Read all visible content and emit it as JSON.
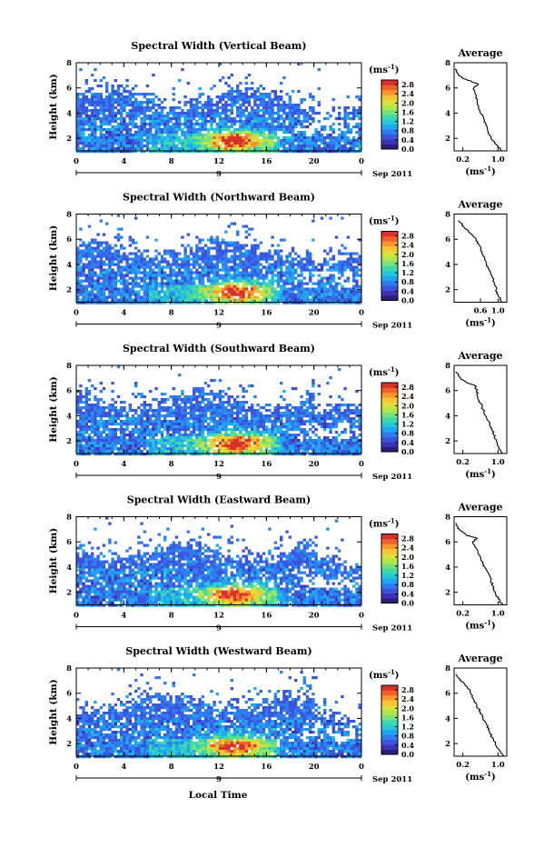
{
  "figure": {
    "xlabel": "Local Time",
    "unit_label": "(ms",
    "unit_exp": "-1",
    "date_label": "Sep 2011",
    "date_tick": "9",
    "average_title": "Average"
  },
  "colorbar": {
    "ticks": [
      "0.0",
      "0.4",
      "0.8",
      "1.2",
      "1.6",
      "2.0",
      "2.4",
      "2.8"
    ],
    "colors": [
      "#2b1e7a",
      "#3a33b5",
      "#3a55dd",
      "#2f7cf0",
      "#1ea6f0",
      "#22c8d8",
      "#3fd9a8",
      "#78e27a",
      "#b0e649",
      "#dde03a",
      "#f7c532",
      "#f8962c",
      "#f0602a",
      "#d8302a"
    ],
    "range": [
      0,
      3.0
    ]
  },
  "chart_data": [
    {
      "type": "heatmap",
      "title": "Spectral Width (Vertical Beam)",
      "ylabel": "Height (km)",
      "xlim": [
        0,
        24
      ],
      "ylim": [
        1,
        8
      ],
      "xticks": [
        "0",
        "4",
        "8",
        "12",
        "16",
        "20",
        "0"
      ],
      "yticks": [
        "2",
        "4",
        "6",
        "8"
      ],
      "average": {
        "title": "Average",
        "xlabel": "(ms",
        "xlim": [
          0,
          1.2
        ],
        "xticks": [
          "0.2",
          "1.0"
        ],
        "yticks": [
          "2",
          "4",
          "6",
          "8"
        ],
        "height": [
          1.0,
          1.5,
          2.0,
          2.5,
          3.0,
          3.5,
          4.0,
          4.5,
          5.0,
          5.5,
          6.0,
          6.3,
          6.5,
          6.8,
          7.0,
          7.5
        ],
        "value": [
          1.08,
          0.96,
          0.84,
          0.78,
          0.74,
          0.68,
          0.6,
          0.56,
          0.52,
          0.48,
          0.45,
          0.55,
          0.4,
          0.18,
          0.1,
          0.02
        ]
      }
    },
    {
      "type": "heatmap",
      "title": "Spectral Width (Northward Beam)",
      "ylabel": "Height (km)",
      "xlim": [
        0,
        24
      ],
      "ylim": [
        1,
        8
      ],
      "xticks": [
        "0",
        "4",
        "8",
        "12",
        "16",
        "20",
        "0"
      ],
      "yticks": [
        "2",
        "4",
        "6",
        "8"
      ],
      "average": {
        "title": "Average",
        "xlabel": "(ms",
        "xlim": [
          0,
          1.2
        ],
        "xticks": [
          "0.6",
          "1.0"
        ],
        "yticks": [
          "2",
          "4",
          "6",
          "8"
        ],
        "height": [
          1.0,
          1.5,
          2.0,
          2.5,
          3.0,
          3.5,
          4.0,
          4.5,
          5.0,
          5.5,
          6.0,
          6.5,
          7.0,
          7.5
        ],
        "value": [
          1.1,
          1.0,
          0.96,
          0.92,
          0.86,
          0.8,
          0.74,
          0.7,
          0.64,
          0.58,
          0.5,
          0.36,
          0.22,
          0.1
        ]
      }
    },
    {
      "type": "heatmap",
      "title": "Spectral Width (Southward Beam)",
      "ylabel": "Height (km)",
      "xlim": [
        0,
        24
      ],
      "ylim": [
        1,
        8
      ],
      "xticks": [
        "0",
        "4",
        "8",
        "12",
        "16",
        "20",
        "0"
      ],
      "yticks": [
        "2",
        "4",
        "6",
        "8"
      ],
      "average": {
        "title": "Average",
        "xlabel": "(ms",
        "xlim": [
          0,
          1.2
        ],
        "xticks": [
          "0.2",
          "1.0"
        ],
        "yticks": [
          "2",
          "4",
          "6",
          "8"
        ],
        "height": [
          1.0,
          1.5,
          2.0,
          2.5,
          3.0,
          3.5,
          4.0,
          4.5,
          5.0,
          5.5,
          6.0,
          6.4,
          6.6,
          7.0,
          7.5
        ],
        "value": [
          1.1,
          1.02,
          0.96,
          0.9,
          0.86,
          0.8,
          0.72,
          0.66,
          0.6,
          0.54,
          0.52,
          0.48,
          0.3,
          0.14,
          0.04
        ]
      }
    },
    {
      "type": "heatmap",
      "title": "Spectral Width (Eastward Beam)",
      "ylabel": "Height (km)",
      "xlim": [
        0,
        24
      ],
      "ylim": [
        1,
        8
      ],
      "xticks": [
        "0",
        "4",
        "8",
        "12",
        "16",
        "20",
        "0"
      ],
      "yticks": [
        "2",
        "4",
        "6",
        "8"
      ],
      "average": {
        "title": "Average",
        "xlabel": "(ms",
        "xlim": [
          0,
          1.2
        ],
        "xticks": [
          "0.2",
          "1.0"
        ],
        "yticks": [
          "2",
          "4",
          "6",
          "8"
        ],
        "height": [
          1.0,
          1.5,
          2.0,
          2.5,
          3.0,
          3.5,
          4.0,
          4.5,
          5.0,
          5.5,
          6.0,
          6.3,
          6.5,
          7.0,
          7.5
        ],
        "value": [
          1.1,
          1.0,
          0.94,
          0.88,
          0.84,
          0.78,
          0.7,
          0.62,
          0.56,
          0.5,
          0.42,
          0.52,
          0.3,
          0.12,
          0.04
        ]
      }
    },
    {
      "type": "heatmap",
      "title": "Spectral Width (Westward Beam)",
      "ylabel": "Height (km)",
      "xlim": [
        0,
        24
      ],
      "ylim": [
        1,
        8
      ],
      "xticks": [
        "0",
        "4",
        "8",
        "12",
        "16",
        "20",
        "0"
      ],
      "yticks": [
        "2",
        "4",
        "6",
        "8"
      ],
      "average": {
        "title": "Average",
        "xlabel": "(ms",
        "xlim": [
          0,
          1.2
        ],
        "xticks": [
          "0.2",
          "1.0"
        ],
        "yticks": [
          "2",
          "4",
          "6",
          "8"
        ],
        "height": [
          1.0,
          1.5,
          2.0,
          2.5,
          3.0,
          3.5,
          4.0,
          4.5,
          5.0,
          5.5,
          6.0,
          6.5,
          7.0,
          7.5
        ],
        "value": [
          1.12,
          1.02,
          0.94,
          0.86,
          0.8,
          0.74,
          0.66,
          0.6,
          0.52,
          0.44,
          0.38,
          0.3,
          0.14,
          0.04
        ]
      }
    }
  ]
}
